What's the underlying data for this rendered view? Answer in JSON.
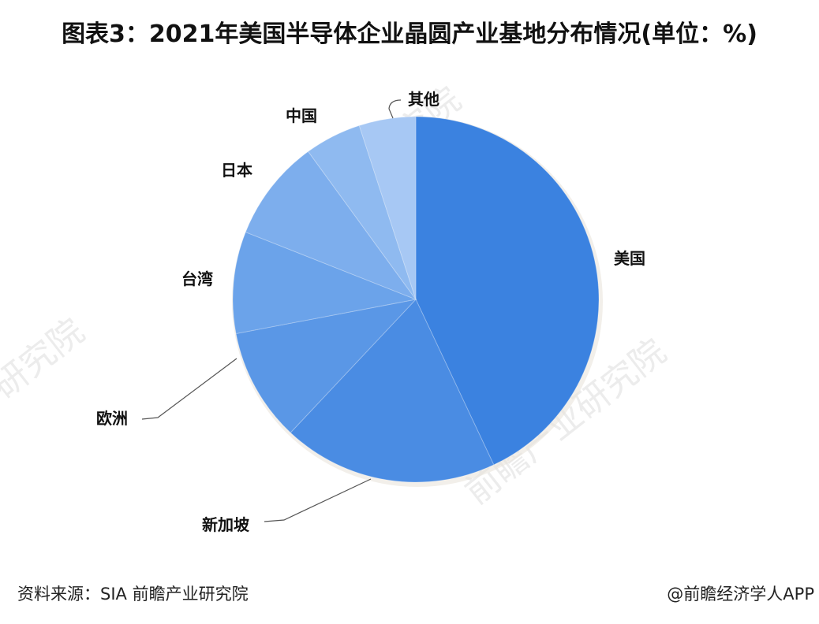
{
  "title": "图表3：2021年美国半导体企业晶圆产业基地分布情况(单位：%)",
  "chart_data": {
    "type": "pie",
    "title": "图表3：2021年美国半导体企业晶圆产业基地分布情况(单位：%)",
    "unit": "%",
    "categories": [
      "美国",
      "新加坡",
      "欧洲",
      "台湾",
      "日本",
      "中国",
      "其他"
    ],
    "values": [
      43,
      19,
      10,
      9,
      9,
      5,
      5
    ],
    "colors": [
      "#3b82e0",
      "#4a8ce3",
      "#5a97e6",
      "#6ba3ea",
      "#7daeed",
      "#8fbaf0",
      "#a7c8f4"
    ],
    "start_angle": "12 o'clock, clockwise",
    "legend": "none (leader-line labels)"
  },
  "labels": {
    "usa": "美国",
    "singapore": "新加坡",
    "europe": "欧洲",
    "taiwan": "台湾",
    "japan": "日本",
    "china": "中国",
    "other": "其他"
  },
  "footer": {
    "source": "资料来源：SIA 前瞻产业研究院",
    "credit": "@前瞻经济学人APP"
  },
  "watermark": {
    "text_a": "前瞻产业研究院",
    "text_b": "研究院"
  }
}
